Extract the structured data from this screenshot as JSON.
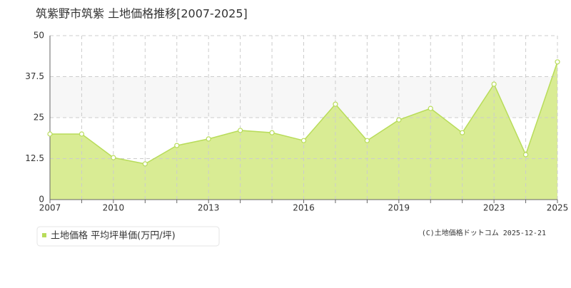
{
  "chart_data": {
    "type": "area",
    "title": "筑紫野市筑紫 土地価格推移[2007-2025]",
    "categories": [
      "2007",
      null,
      "2010",
      null,
      null,
      "2013",
      null,
      null,
      "2016",
      null,
      null,
      "2019",
      null,
      null,
      "2023",
      null,
      "2025"
    ],
    "series": [
      {
        "name": "土地価格 平均坪単価(万円/坪)",
        "color": "#b8dc5a",
        "values": [
          20.0,
          20.0,
          12.8,
          10.9,
          16.5,
          18.5,
          21.1,
          20.4,
          18.0,
          29.1,
          18.0,
          24.3,
          27.8,
          20.4,
          35.2,
          13.7,
          42.0
        ]
      }
    ],
    "ylim": [
      0,
      50
    ],
    "yticks": [
      0,
      12.5,
      25,
      37.5,
      50
    ],
    "grid": true,
    "copyright": "(C)土地価格ドットコム 2025-12-21"
  }
}
